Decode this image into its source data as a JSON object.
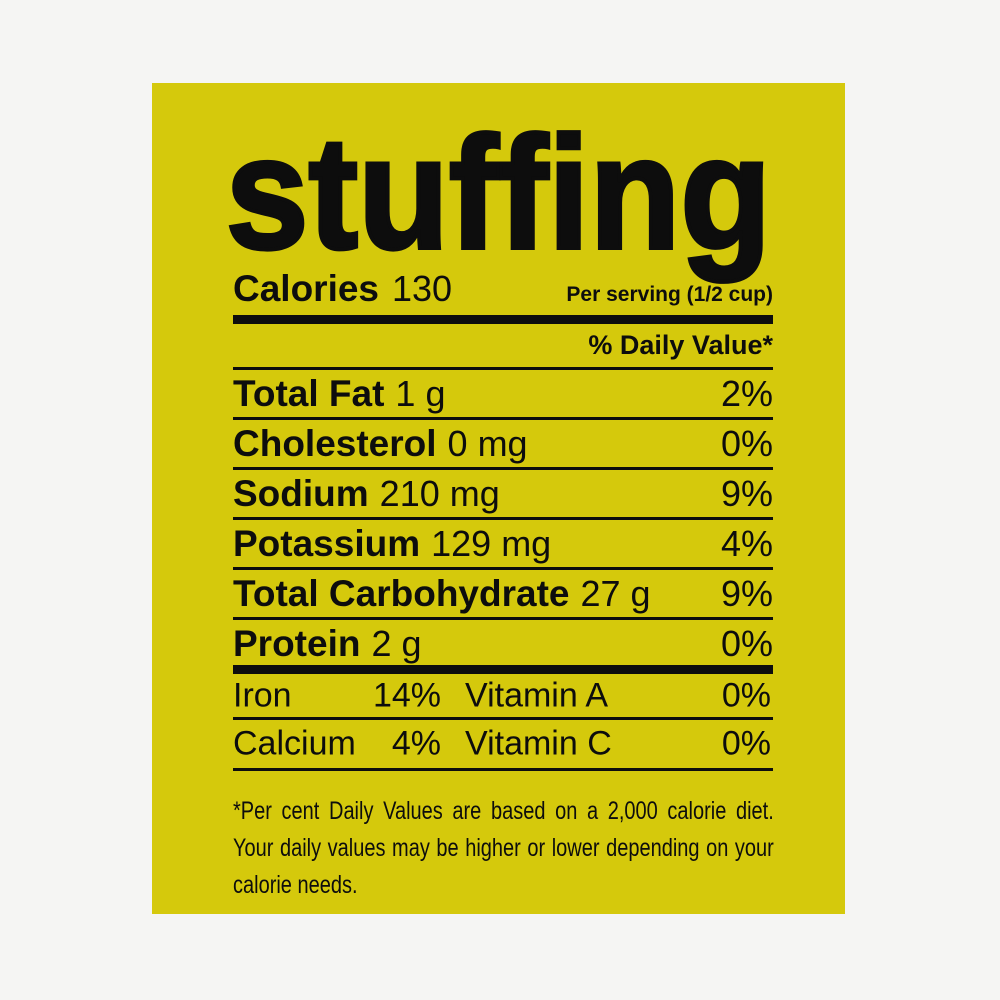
{
  "product": {
    "title": "stuffing"
  },
  "label": {
    "calories_label": "Calories",
    "calories_value": "130",
    "serving_note": "Per serving (1/2 cup)",
    "daily_value_header": "% Daily Value*",
    "nutrients": [
      {
        "name": "Total Fat",
        "amount": "1 g",
        "dv": "2%"
      },
      {
        "name": "Cholesterol",
        "amount": "0 mg",
        "dv": "0%"
      },
      {
        "name": "Sodium",
        "amount": "210 mg",
        "dv": "9%"
      },
      {
        "name": "Potassium",
        "amount": "129 mg",
        "dv": "4%"
      },
      {
        "name": "Total Carbohydrate",
        "amount": "27 g",
        "dv": "9%"
      },
      {
        "name": "Protein",
        "amount": "2 g",
        "dv": "0%"
      }
    ],
    "micronutrients": [
      {
        "left_name": "Iron",
        "left_dv": "14%",
        "right_name": "Vitamin A",
        "right_dv": "0%"
      },
      {
        "left_name": "Calcium",
        "left_dv": "4%",
        "right_name": "Vitamin C",
        "right_dv": "0%"
      }
    ],
    "footnote": "*Per cent Daily Values are based on a 2,000 calorie diet. Your daily values may be higher or lower depending on your calorie needs."
  },
  "colors": {
    "panel_background": "#d5c90c",
    "page_background": "#f5f5f3",
    "text": "#0d0d0d"
  }
}
